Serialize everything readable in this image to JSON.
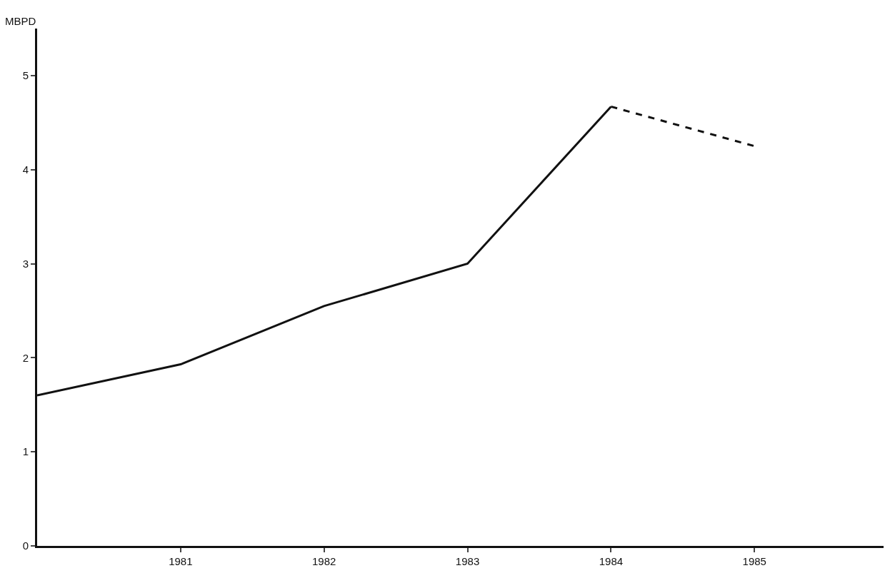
{
  "chart_data": {
    "type": "line",
    "ylabel": "MBPD",
    "xlim": [
      1980,
      1985.9
    ],
    "xticks": [
      1981,
      1982,
      1983,
      1984,
      1985
    ],
    "ylim": [
      0,
      5.5
    ],
    "yticks": [
      0,
      1,
      2,
      3,
      4,
      5
    ],
    "series": [
      {
        "x": [
          1980,
          1981,
          1982,
          1983,
          1984
        ],
        "values": [
          1.6,
          1.93,
          2.55,
          3.0,
          4.67
        ],
        "color": "#111111",
        "line_style": "solid"
      },
      {
        "x": [
          1984,
          1985
        ],
        "values": [
          4.67,
          4.25
        ],
        "color": "#111111",
        "line_style": "dashed"
      }
    ]
  }
}
